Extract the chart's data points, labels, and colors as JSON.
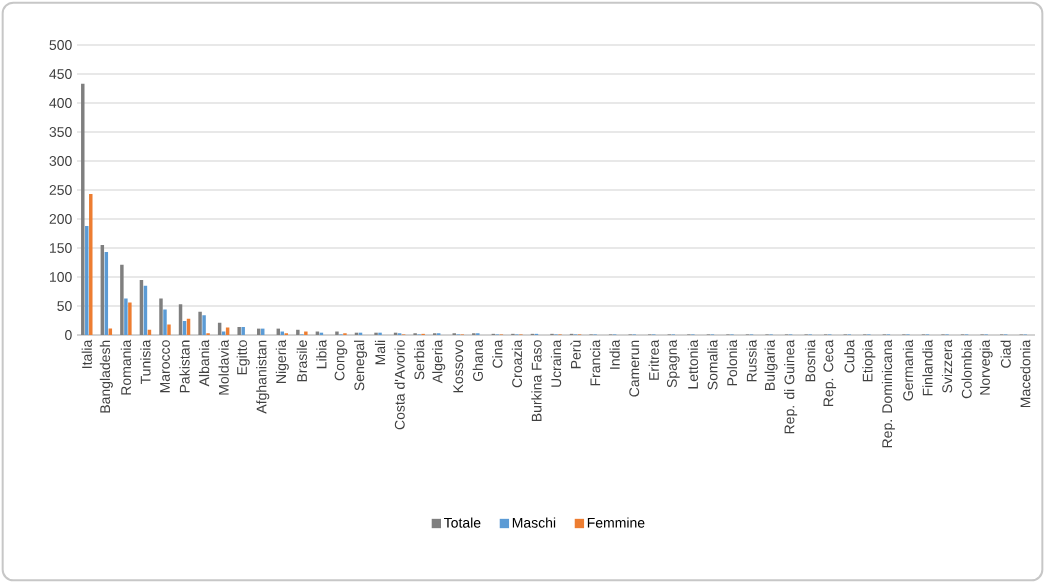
{
  "chart_data": {
    "type": "bar",
    "categories": [
      "Italia",
      "Bangladesh",
      "Romania",
      "Tunisia",
      "Marocco",
      "Pakistan",
      "Albania",
      "Moldavia",
      "Egitto",
      "Afghanistan",
      "Nigeria",
      "Brasile",
      "Libia",
      "Congo",
      "Senegal",
      "Mali",
      "Costa d'Avorio",
      "Serbia",
      "Algeria",
      "Kossovo",
      "Ghana",
      "Cina",
      "Croazia",
      "Burkina Faso",
      "Ucraina",
      "Perù",
      "Francia",
      "India",
      "Camerun",
      "Eritrea",
      "Spagna",
      "Lettonia",
      "Somalia",
      "Polonia",
      "Russia",
      "Bulgaria",
      "Rep. di Guinea",
      "Bosnia",
      "Rep. Ceca",
      "Cuba",
      "Etiopia",
      "Rep. Dominicana",
      "Germania",
      "Finlandia",
      "Svizzera",
      "Colombia",
      "Norvegia",
      "Ciad",
      "Macedonia"
    ],
    "series": [
      {
        "name": "Totale",
        "color": "#7f7f7f",
        "values": [
          433,
          155,
          121,
          95,
          63,
          53,
          40,
          21,
          14,
          11,
          11,
          9,
          6,
          6,
          4,
          4,
          4,
          3,
          3,
          3,
          3,
          2,
          2,
          2,
          2,
          2,
          1,
          1,
          1,
          1,
          1,
          1,
          1,
          1,
          1,
          1,
          1,
          1,
          1,
          1,
          1,
          1,
          1,
          1,
          1,
          1,
          1,
          1,
          1
        ]
      },
      {
        "name": "Maschi",
        "color": "#5b9bd5",
        "values": [
          188,
          143,
          63,
          85,
          44,
          24,
          34,
          6,
          14,
          11,
          6,
          1,
          4,
          1,
          4,
          4,
          3,
          1,
          3,
          1,
          3,
          1,
          1,
          2,
          1,
          1,
          1,
          1,
          1,
          1,
          1,
          1,
          1,
          1,
          1,
          1,
          1,
          1,
          1,
          1,
          1,
          1,
          1,
          1,
          1,
          1,
          1,
          1,
          1
        ]
      },
      {
        "name": "Femmine",
        "color": "#ed7d31",
        "values": [
          243,
          11,
          56,
          9,
          18,
          28,
          3,
          13,
          0,
          0,
          3,
          6,
          0,
          3,
          0,
          0,
          1,
          2,
          0,
          1,
          0,
          1,
          1,
          0,
          1,
          1,
          0,
          0,
          0,
          0,
          0,
          0,
          0,
          0,
          0,
          0,
          0,
          0,
          0,
          0,
          0,
          0,
          0,
          0,
          0,
          0,
          0,
          0,
          0
        ]
      }
    ],
    "ylim": [
      0,
      500
    ],
    "yticks": [
      0,
      50,
      100,
      150,
      200,
      250,
      300,
      350,
      400,
      450,
      500
    ],
    "grid": "y",
    "legend": "bottom"
  }
}
